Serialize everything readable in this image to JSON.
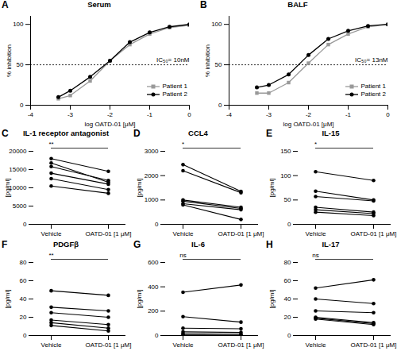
{
  "chart_data": [
    {
      "type": "line",
      "panel": "A",
      "title": "Serum",
      "xlabel": "log OATD-01 [μM]",
      "ylabel": "% inhibition",
      "x": [
        -3.3,
        -3,
        -2.5,
        -2,
        -1.5,
        -1,
        -0.5,
        0
      ],
      "series": [
        {
          "name": "Patient 1",
          "color": "#999999",
          "marker": "square",
          "values": [
            8,
            12,
            30,
            55,
            75,
            88,
            96,
            99
          ]
        },
        {
          "name": "Patient 2",
          "color": "#000000",
          "marker": "circle",
          "values": [
            10,
            18,
            35,
            55,
            78,
            90,
            97,
            100
          ]
        }
      ],
      "xlim": [
        -4,
        0
      ],
      "xticks": [
        -4,
        -3,
        -2,
        -1,
        0
      ],
      "ylim": [
        0,
        110
      ],
      "yticks": [
        0,
        50,
        100
      ],
      "reference_line": {
        "y": 50,
        "line_style": "dotted"
      },
      "annotations": [
        "IC₅₀= 10nM"
      ],
      "legend": "bottom right"
    },
    {
      "type": "line",
      "panel": "B",
      "title": "BALF",
      "xlabel": "log OATD-01 [μM]",
      "ylabel": "% inhibition",
      "x": [
        -3.3,
        -3,
        -2.5,
        -2,
        -1.5,
        -1,
        -0.5,
        0
      ],
      "series": [
        {
          "name": "Patient 1",
          "color": "#999999",
          "marker": "square",
          "values": [
            15,
            15,
            28,
            52,
            75,
            88,
            97,
            100
          ]
        },
        {
          "name": "Patient 2",
          "color": "#000000",
          "marker": "circle",
          "values": [
            22,
            25,
            38,
            62,
            82,
            92,
            98,
            100
          ]
        }
      ],
      "xlim": [
        -4,
        0
      ],
      "xticks": [
        -4,
        -3,
        -2,
        -1,
        0
      ],
      "ylim": [
        0,
        110
      ],
      "yticks": [
        0,
        50,
        100
      ],
      "reference_line": {
        "y": 50,
        "line_style": "dotted"
      },
      "annotations": [
        "IC₅₀= 13nM"
      ],
      "legend": "bottom right"
    },
    {
      "type": "paired",
      "panel": "C",
      "title": "IL-1 receptor antagonist",
      "ylabel": "[pg/ml]",
      "categories": [
        "Vehicle",
        "OATD-01 [1 μM]"
      ],
      "values": [
        [
          18000,
          14500
        ],
        [
          16800,
          11500
        ],
        [
          15800,
          12000
        ],
        [
          14000,
          11000
        ],
        [
          12500,
          9500
        ],
        [
          10500,
          8500
        ]
      ],
      "ylim": [
        0,
        20000
      ],
      "yticks": [
        0,
        5000,
        10000,
        15000,
        20000
      ],
      "significance": "**"
    },
    {
      "type": "paired",
      "panel": "D",
      "title": "CCL4",
      "ylabel": "[pg/ml]",
      "categories": [
        "Vehicle",
        "OATD-01 [1 μM]"
      ],
      "values": [
        [
          2450,
          1350
        ],
        [
          2200,
          1300
        ],
        [
          1000,
          700
        ],
        [
          950,
          650
        ],
        [
          850,
          600
        ],
        [
          800,
          200
        ]
      ],
      "ylim": [
        0,
        3000
      ],
      "yticks": [
        0,
        1000,
        2000,
        3000
      ],
      "significance": "*"
    },
    {
      "type": "paired",
      "panel": "E",
      "title": "IL-15",
      "ylabel": "[pg/ml]",
      "categories": [
        "Vehicle",
        "OATD-01 [1 μM]"
      ],
      "values": [
        [
          108,
          90
        ],
        [
          68,
          50
        ],
        [
          57,
          48
        ],
        [
          35,
          25
        ],
        [
          30,
          22
        ],
        [
          25,
          18
        ]
      ],
      "ylim": [
        0,
        150
      ],
      "yticks": [
        0,
        50,
        100,
        150
      ],
      "significance": "*"
    },
    {
      "type": "paired",
      "panel": "F",
      "title": "PDGFβ",
      "ylabel": "[pg/ml]",
      "categories": [
        "Vehicle",
        "OATD-01 [1 μM]"
      ],
      "values": [
        [
          49,
          44
        ],
        [
          31,
          27
        ],
        [
          25,
          20
        ],
        [
          17,
          12
        ],
        [
          14,
          8
        ],
        [
          11,
          5
        ]
      ],
      "ylim": [
        0,
        80
      ],
      "yticks": [
        0,
        20,
        40,
        60,
        80
      ],
      "significance": "**"
    },
    {
      "type": "paired",
      "panel": "G",
      "title": "IL-6",
      "ylabel": "[pg/ml]",
      "categories": [
        "Vehicle",
        "OATD-01 [1 μM]"
      ],
      "values": [
        [
          355,
          415
        ],
        [
          155,
          110
        ],
        [
          60,
          55
        ],
        [
          30,
          25
        ],
        [
          15,
          10
        ],
        [
          5,
          3
        ]
      ],
      "ylim": [
        0,
        600
      ],
      "yticks": [
        0,
        200,
        400,
        600
      ],
      "significance": "ns"
    },
    {
      "type": "paired",
      "panel": "H",
      "title": "IL-17",
      "ylabel": "[pg/ml]",
      "categories": [
        "Vehicle",
        "OATD-01 [1 μM]"
      ],
      "values": [
        [
          52,
          61
        ],
        [
          40,
          35
        ],
        [
          27,
          25
        ],
        [
          20,
          14
        ],
        [
          19,
          13
        ],
        [
          18,
          12
        ]
      ],
      "ylim": [
        0,
        80
      ],
      "yticks": [
        0,
        20,
        40,
        60,
        80
      ],
      "significance": "ns"
    }
  ]
}
